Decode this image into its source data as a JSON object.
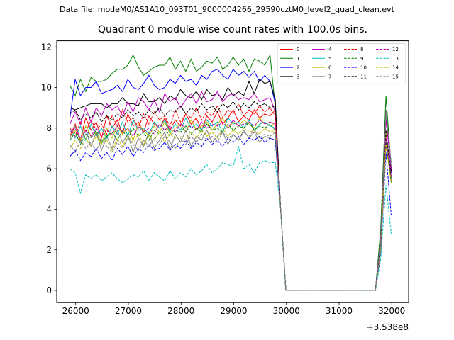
{
  "chart_data": {
    "type": "line",
    "suptitle": "Data file: modeM0/AS1A10_093T01_9000004266_29590cztM0_level2_quad_clean.evt",
    "title": "Quadrant 0 module wise count rates with 100.0s bins.",
    "xlabel": "",
    "ylabel": "",
    "x_offset_label": "+3.538e8",
    "xlim": [
      25640,
      32320
    ],
    "ylim": [
      -0.6,
      12.3
    ],
    "xticks": [
      26000,
      27000,
      28000,
      29000,
      30000,
      31000,
      32000
    ],
    "yticks": [
      0,
      2,
      4,
      6,
      8,
      10,
      12
    ],
    "legend_location": "upper right",
    "legend_columns": 4,
    "x": [
      25890,
      25990,
      26090,
      26190,
      26290,
      26390,
      26490,
      26590,
      26690,
      26790,
      26890,
      26990,
      27090,
      27190,
      27290,
      27390,
      27490,
      27590,
      27690,
      27790,
      27890,
      27990,
      28090,
      28190,
      28290,
      28390,
      28490,
      28590,
      28690,
      28790,
      28890,
      28990,
      29090,
      29190,
      29290,
      29390,
      29490,
      29590,
      29690,
      29790,
      29890,
      29990,
      30090,
      30190,
      30290,
      30390,
      30490,
      30590,
      30690,
      30790,
      30890,
      30990,
      31090,
      31190,
      31290,
      31390,
      31490,
      31590,
      31690,
      31790,
      31890,
      31990
    ],
    "series": [
      {
        "name": "0",
        "color": "#ff0000",
        "dashed": false,
        "values": [
          7.6,
          8.2,
          7.4,
          8.5,
          7.9,
          8.3,
          7.5,
          8.6,
          8.0,
          8.4,
          7.7,
          8.7,
          8.1,
          8.3,
          7.8,
          8.6,
          8.2,
          8.0,
          8.5,
          7.9,
          8.4,
          8.1,
          8.7,
          8.2,
          8.5,
          7.9,
          8.6,
          8.3,
          8.8,
          8.2,
          8.5,
          8.9,
          8.3,
          8.6,
          8.4,
          8.9,
          8.5,
          8.7,
          8.6,
          8.9,
          4.0,
          0.0,
          0,
          0,
          0,
          0,
          0,
          0,
          0,
          0,
          0,
          0,
          0,
          0,
          0,
          0,
          0,
          0,
          0,
          2.0,
          7.6,
          5.5
        ]
      },
      {
        "name": "1",
        "color": "#008000",
        "dashed": false,
        "values": [
          10.1,
          9.6,
          10.4,
          9.8,
          10.5,
          10.3,
          10.3,
          10.4,
          10.7,
          10.9,
          10.9,
          11.1,
          11.6,
          11.0,
          10.6,
          10.8,
          11.0,
          11.1,
          11.1,
          11.5,
          10.9,
          11.3,
          10.8,
          11.4,
          10.8,
          11.0,
          11.3,
          11.2,
          11.5,
          10.9,
          11.1,
          11.5,
          11.1,
          11.4,
          10.8,
          11.4,
          11.3,
          11.1,
          11.6,
          9.0,
          4.0,
          0.0,
          0,
          0,
          0,
          0,
          0,
          0,
          0,
          0,
          0,
          0,
          0,
          0,
          0,
          0,
          0,
          0,
          0,
          3.0,
          9.6,
          6.0
        ]
      },
      {
        "name": "2",
        "color": "#0000ff",
        "dashed": false,
        "values": [
          8.5,
          10.4,
          9.6,
          10.0,
          10.0,
          10.3,
          9.7,
          9.8,
          9.9,
          10.1,
          9.8,
          10.4,
          10.0,
          9.9,
          10.2,
          10.6,
          10.1,
          9.9,
          10.0,
          10.4,
          10.2,
          10.6,
          10.3,
          10.4,
          10.1,
          10.6,
          10.4,
          10.8,
          10.9,
          10.6,
          10.4,
          10.9,
          10.6,
          10.8,
          10.5,
          10.8,
          10.3,
          10.6,
          10.3,
          9.2,
          4.0,
          0.0,
          0,
          0,
          0,
          0,
          0,
          0,
          0,
          0,
          0,
          0,
          0,
          0,
          0,
          0,
          0,
          0,
          0,
          2.5,
          8.8,
          5.8
        ]
      },
      {
        "name": "3",
        "color": "#000000",
        "dashed": false,
        "values": [
          9.0,
          8.9,
          9.0,
          9.1,
          9.2,
          9.2,
          9.2,
          9.0,
          9.2,
          9.2,
          9.5,
          9.2,
          9.2,
          9.1,
          9.7,
          9.3,
          9.3,
          9.5,
          9.2,
          9.6,
          9.4,
          9.9,
          9.6,
          9.5,
          9.8,
          9.4,
          9.9,
          9.6,
          9.7,
          9.4,
          10.0,
          9.6,
          9.8,
          9.6,
          10.3,
          9.7,
          10.4,
          10.2,
          10.3,
          9.4,
          4.0,
          0.0,
          0,
          0,
          0,
          0,
          0,
          0,
          0,
          0,
          0,
          0,
          0,
          0,
          0,
          0,
          0,
          0,
          0,
          2.5,
          8.9,
          5.9
        ]
      },
      {
        "name": "4",
        "color": "#bf00bf",
        "dashed": false,
        "values": [
          8.2,
          8.8,
          8.2,
          9.0,
          8.3,
          9.0,
          8.6,
          9.2,
          8.9,
          9.1,
          8.6,
          9.3,
          8.8,
          9.5,
          9.3,
          8.9,
          9.4,
          8.8,
          9.7,
          9.3,
          9.5,
          9.0,
          9.4,
          9.7,
          9.2,
          9.8,
          9.3,
          9.4,
          9.8,
          9.3,
          9.6,
          9.7,
          9.4,
          9.5,
          9.4,
          9.7,
          9.3,
          9.4,
          9.5,
          8.8,
          4.0,
          0.0,
          0,
          0,
          0,
          0,
          0,
          0,
          0,
          0,
          0,
          0,
          0,
          0,
          0,
          0,
          0,
          0,
          0,
          2.5,
          8.4,
          6.0
        ]
      },
      {
        "name": "5",
        "color": "#00bfbf",
        "dashed": false,
        "values": [
          8.0,
          7.5,
          8.1,
          7.4,
          8.2,
          7.6,
          8.0,
          7.5,
          8.1,
          7.7,
          8.3,
          7.6,
          8.4,
          7.9,
          8.0,
          7.7,
          8.3,
          8.0,
          8.4,
          7.8,
          8.2,
          7.9,
          8.5,
          8.0,
          8.2,
          7.9,
          8.4,
          8.1,
          8.3,
          7.8,
          8.5,
          8.2,
          8.3,
          8.0,
          8.4,
          7.9,
          8.2,
          8.3,
          8.1,
          8.0,
          4.0,
          0.0,
          0,
          0,
          0,
          0,
          0,
          0,
          0,
          0,
          0,
          0,
          0,
          0,
          0,
          0,
          0,
          0,
          0,
          2.0,
          7.4,
          5.5
        ]
      },
      {
        "name": "6",
        "color": "#bfbf00",
        "dashed": false,
        "values": [
          7.6,
          7.9,
          7.4,
          8.1,
          7.6,
          7.8,
          7.2,
          8.0,
          7.5,
          8.1,
          7.7,
          8.0,
          7.4,
          8.2,
          7.9,
          7.6,
          8.1,
          7.8,
          8.3,
          7.7,
          8.0,
          8.2,
          7.8,
          8.4,
          7.9,
          8.1,
          8.3,
          7.9,
          8.2,
          8.5,
          8.0,
          8.3,
          8.1,
          8.4,
          8.2,
          8.0,
          8.5,
          8.2,
          8.3,
          8.1,
          4.0,
          0.0,
          0,
          0,
          0,
          0,
          0,
          0,
          0,
          0,
          0,
          0,
          0,
          0,
          0,
          0,
          0,
          0,
          0,
          2.0,
          7.8,
          5.6
        ]
      },
      {
        "name": "7",
        "color": "#808080",
        "dashed": false,
        "values": [
          7.5,
          8.1,
          7.3,
          7.9,
          7.1,
          7.8,
          6.9,
          7.6,
          7.0,
          7.9,
          7.3,
          7.7,
          6.8,
          7.5,
          7.1,
          7.8,
          7.0,
          7.4,
          7.8,
          6.9,
          7.7,
          7.3,
          7.9,
          7.1,
          7.6,
          7.4,
          7.9,
          7.3,
          7.6,
          7.8,
          7.2,
          7.7,
          7.4,
          7.9,
          7.5,
          7.8,
          7.3,
          7.6,
          7.5,
          7.4,
          4.0,
          0.0,
          0,
          0,
          0,
          0,
          0,
          0,
          0,
          0,
          0,
          0,
          0,
          0,
          0,
          0,
          0,
          0,
          0,
          2.5,
          8.8,
          6.3
        ]
      },
      {
        "name": "8",
        "color": "#ff0000",
        "dashed": true,
        "values": [
          8.0,
          7.6,
          8.3,
          7.8,
          8.4,
          7.9,
          8.2,
          7.7,
          8.6,
          8.1,
          8.9,
          8.3,
          8.5,
          8.0,
          8.7,
          8.2,
          8.8,
          8.4,
          8.6,
          8.1,
          8.9,
          8.3,
          8.7,
          8.5,
          9.0,
          8.4,
          8.8,
          8.6,
          9.1,
          8.5,
          8.9,
          8.7,
          9.2,
          8.6,
          8.9,
          8.7,
          9.1,
          8.8,
          9.0,
          8.6,
          4.0,
          0.0,
          0,
          0,
          0,
          0,
          0,
          0,
          0,
          0,
          0,
          0,
          0,
          0,
          0,
          0,
          0,
          0,
          0,
          2.0,
          7.2,
          5.4
        ]
      },
      {
        "name": "9",
        "color": "#008000",
        "dashed": true,
        "values": [
          7.4,
          7.8,
          7.2,
          7.7,
          7.5,
          7.9,
          7.3,
          7.6,
          7.8,
          7.4,
          7.9,
          7.5,
          8.0,
          7.6,
          7.8,
          7.4,
          7.9,
          7.7,
          8.0,
          7.6,
          7.9,
          7.8,
          8.1,
          7.7,
          8.0,
          7.8,
          8.2,
          7.9,
          8.0,
          7.8,
          8.2,
          7.9,
          8.1,
          8.0,
          8.3,
          7.9,
          8.1,
          8.0,
          8.2,
          7.9,
          4.0,
          0.0,
          0,
          0,
          0,
          0,
          0,
          0,
          0,
          0,
          0,
          0,
          0,
          0,
          0,
          0,
          0,
          0,
          0,
          2.0,
          7.3,
          5.3
        ]
      },
      {
        "name": "10",
        "color": "#0000ff",
        "dashed": true,
        "values": [
          6.6,
          6.9,
          6.4,
          6.8,
          6.6,
          7.0,
          6.5,
          6.8,
          6.4,
          7.0,
          6.7,
          7.1,
          6.6,
          7.0,
          6.8,
          7.2,
          6.9,
          7.0,
          7.3,
          6.9,
          7.2,
          7.0,
          7.4,
          7.0,
          7.3,
          7.1,
          7.5,
          7.2,
          7.4,
          7.1,
          7.5,
          7.3,
          7.6,
          7.2,
          7.5,
          7.4,
          7.6,
          7.3,
          7.5,
          7.4,
          4.0,
          0.0,
          0,
          0,
          0,
          0,
          0,
          0,
          0,
          0,
          0,
          0,
          0,
          0,
          0,
          0,
          0,
          0,
          0,
          1.8,
          6.8,
          3.7
        ]
      },
      {
        "name": "11",
        "color": "#000000",
        "dashed": true,
        "values": [
          8.7,
          8.9,
          8.4,
          8.7,
          8.5,
          8.8,
          8.3,
          8.6,
          8.4,
          8.7,
          8.5,
          8.9,
          8.6,
          8.8,
          8.5,
          8.9,
          8.7,
          9.0,
          8.6,
          8.9,
          8.8,
          9.1,
          8.7,
          9.0,
          8.8,
          9.2,
          8.9,
          9.1,
          8.8,
          9.2,
          9.0,
          9.3,
          8.9,
          9.2,
          9.0,
          9.3,
          9.1,
          9.2,
          9.0,
          9.1,
          4.0,
          0.0,
          0,
          0,
          0,
          0,
          0,
          0,
          0,
          0,
          0,
          0,
          0,
          0,
          0,
          0,
          0,
          0,
          0,
          2.2,
          7.9,
          5.6
        ]
      },
      {
        "name": "12",
        "color": "#bf00bf",
        "dashed": true,
        "values": [
          7.8,
          8.0,
          7.5,
          7.9,
          7.6,
          8.0,
          7.6,
          7.9,
          7.7,
          8.1,
          7.8,
          8.0,
          7.6,
          8.1,
          7.8,
          8.0,
          7.7,
          8.2,
          7.9,
          8.1,
          7.8,
          8.2,
          8.0,
          8.1,
          7.9,
          8.3,
          8.0,
          8.2,
          8.1,
          8.3,
          8.0,
          8.4,
          8.1,
          8.2,
          8.3,
          8.1,
          8.4,
          8.2,
          8.3,
          8.2,
          4.0,
          0.0,
          0,
          0,
          0,
          0,
          0,
          0,
          0,
          0,
          0,
          0,
          0,
          0,
          0,
          0,
          0,
          0,
          0,
          2.0,
          7.5,
          5.6
        ]
      },
      {
        "name": "13",
        "color": "#00bfbf",
        "dashed": true,
        "values": [
          6.0,
          5.8,
          4.8,
          5.7,
          5.5,
          5.7,
          5.4,
          5.6,
          5.8,
          5.5,
          5.3,
          5.5,
          5.7,
          5.6,
          5.9,
          5.4,
          5.8,
          5.6,
          5.4,
          5.9,
          5.5,
          5.8,
          5.6,
          6.0,
          5.7,
          5.9,
          6.2,
          5.8,
          6.0,
          6.3,
          6.2,
          6.1,
          7.1,
          6.0,
          6.2,
          5.8,
          6.3,
          6.4,
          6.3,
          6.3,
          4.0,
          0.0,
          0,
          0,
          0,
          0,
          0,
          0,
          0,
          0,
          0,
          0,
          0,
          0,
          0,
          0,
          0,
          0,
          0,
          1.5,
          5.2,
          2.8
        ]
      },
      {
        "name": "14",
        "color": "#bfbf00",
        "dashed": true,
        "values": [
          7.0,
          7.4,
          7.0,
          7.5,
          7.1,
          7.6,
          7.2,
          7.4,
          6.9,
          7.5,
          7.1,
          7.6,
          7.3,
          7.7,
          7.2,
          7.6,
          7.4,
          7.8,
          7.3,
          7.7,
          7.5,
          7.6,
          7.4,
          7.8,
          7.5,
          7.9,
          7.6,
          7.8,
          7.5,
          8.0,
          7.6,
          7.9,
          7.7,
          8.0,
          7.8,
          7.9,
          7.7,
          8.0,
          7.8,
          7.9,
          4.0,
          0.0,
          0,
          0,
          0,
          0,
          0,
          0,
          0,
          0,
          0,
          0,
          0,
          0,
          0,
          0,
          0,
          0,
          0,
          2.0,
          7.2,
          5.3
        ]
      },
      {
        "name": "15",
        "color": "#808080",
        "dashed": true,
        "values": [
          7.2,
          6.8,
          7.4,
          7.0,
          7.3,
          6.9,
          7.4,
          7.1,
          6.8,
          7.3,
          7.0,
          7.5,
          7.2,
          6.9,
          7.4,
          7.1,
          7.5,
          7.2,
          7.6,
          7.3,
          7.0,
          7.5,
          7.2,
          7.6,
          7.3,
          7.7,
          7.4,
          7.6,
          7.3,
          7.8,
          7.5,
          7.7,
          7.4,
          7.8,
          7.6,
          7.9,
          7.5,
          7.7,
          7.6,
          7.8,
          4.0,
          0.0,
          0,
          0,
          0,
          0,
          0,
          0,
          0,
          0,
          0,
          0,
          0,
          0,
          0,
          0,
          0,
          0,
          0,
          2.2,
          8.9,
          6.1
        ]
      }
    ]
  }
}
